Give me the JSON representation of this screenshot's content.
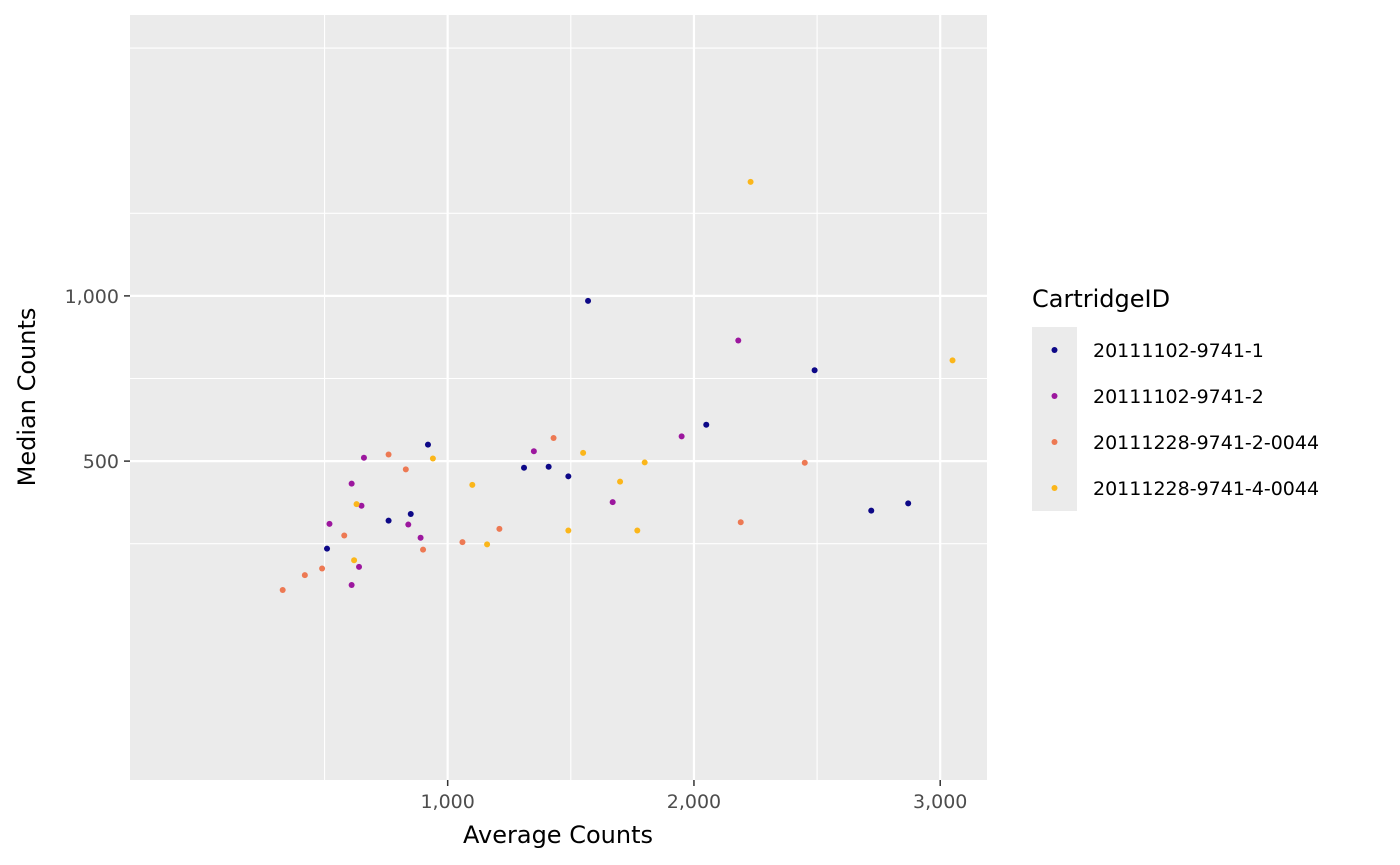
{
  "chart_data": {
    "type": "scatter",
    "title": "",
    "xlabel": "Average Counts",
    "ylabel": "Median Counts",
    "xlim": [
      -290,
      3190
    ],
    "ylim": [
      -465,
      1850
    ],
    "x_ticks": [
      1000,
      2000,
      3000
    ],
    "x_tick_labels": [
      "1,000",
      "2,000",
      "3,000"
    ],
    "y_ticks": [
      500,
      1000
    ],
    "y_tick_labels": [
      "500",
      "1,000"
    ],
    "grid": true,
    "legend": {
      "title": "CartridgeID",
      "placement": "right"
    },
    "series": [
      {
        "name": "20111102-9741-1",
        "color": "#0d0887",
        "points": [
          [
            1570,
            985
          ],
          [
            2490,
            775
          ],
          [
            2050,
            610
          ],
          [
            920,
            550
          ],
          [
            1310,
            480
          ],
          [
            1410,
            483
          ],
          [
            1490,
            454
          ],
          [
            2870,
            372
          ],
          [
            2720,
            350
          ],
          [
            850,
            340
          ],
          [
            760,
            320
          ],
          [
            510,
            235
          ]
        ]
      },
      {
        "name": "20111102-9741-2",
        "color": "#9c179e",
        "points": [
          [
            2180,
            865
          ],
          [
            1950,
            575
          ],
          [
            1350,
            530
          ],
          [
            660,
            510
          ],
          [
            610,
            432
          ],
          [
            1670,
            376
          ],
          [
            650,
            365
          ],
          [
            520,
            310
          ],
          [
            840,
            308
          ],
          [
            890,
            268
          ],
          [
            640,
            180
          ],
          [
            610,
            125
          ]
        ]
      },
      {
        "name": "20111228-9741-2-0044",
        "color": "#ed7953",
        "points": [
          [
            1430,
            570
          ],
          [
            2450,
            495
          ],
          [
            760,
            520
          ],
          [
            830,
            475
          ],
          [
            2190,
            315
          ],
          [
            1210,
            295
          ],
          [
            580,
            275
          ],
          [
            1060,
            255
          ],
          [
            900,
            232
          ],
          [
            490,
            175
          ],
          [
            420,
            155
          ],
          [
            330,
            110
          ]
        ]
      },
      {
        "name": "20111228-9741-4-0044",
        "color": "#fbb61a",
        "points": [
          [
            2230,
            1345
          ],
          [
            3050,
            805
          ],
          [
            940,
            508
          ],
          [
            1550,
            525
          ],
          [
            1800,
            496
          ],
          [
            1700,
            438
          ],
          [
            1100,
            428
          ],
          [
            630,
            370
          ],
          [
            1490,
            290
          ],
          [
            1770,
            290
          ],
          [
            1160,
            248
          ],
          [
            620,
            200
          ]
        ]
      }
    ]
  }
}
